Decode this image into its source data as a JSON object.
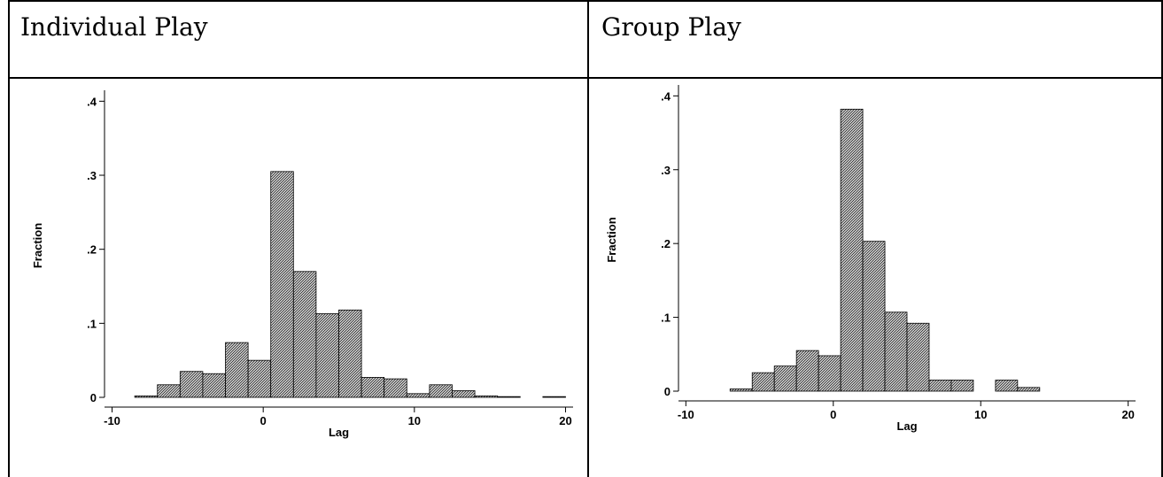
{
  "panels": [
    {
      "title": "Individual Play"
    },
    {
      "title": "Group Play"
    }
  ],
  "chart_data": [
    {
      "type": "bar",
      "title": "Individual Play",
      "xlabel": "Lag",
      "ylabel": "Fraction",
      "xlim": [
        -10.5,
        20.5
      ],
      "ylim": [
        0,
        0.41
      ],
      "xticks": [
        -10,
        0,
        10,
        20
      ],
      "xtick_labels": [
        "-10",
        "0",
        "10",
        "20"
      ],
      "yticks": [
        0,
        0.1,
        0.2,
        0.3,
        0.4
      ],
      "ytick_labels": [
        "0",
        ".1",
        ".2",
        ".3",
        ".4"
      ],
      "bin_width": 1.5,
      "bins": [
        {
          "x0": -8.5,
          "value": 0.002
        },
        {
          "x0": -7.0,
          "value": 0.017
        },
        {
          "x0": -5.5,
          "value": 0.035
        },
        {
          "x0": -4.0,
          "value": 0.032
        },
        {
          "x0": -2.5,
          "value": 0.074
        },
        {
          "x0": -1.0,
          "value": 0.05
        },
        {
          "x0": 0.5,
          "value": 0.305
        },
        {
          "x0": 2.0,
          "value": 0.17
        },
        {
          "x0": 3.5,
          "value": 0.113
        },
        {
          "x0": 5.0,
          "value": 0.118
        },
        {
          "x0": 6.5,
          "value": 0.027
        },
        {
          "x0": 8.0,
          "value": 0.025
        },
        {
          "x0": 9.5,
          "value": 0.005
        },
        {
          "x0": 11.0,
          "value": 0.017
        },
        {
          "x0": 12.5,
          "value": 0.009
        },
        {
          "x0": 14.0,
          "value": 0.002
        },
        {
          "x0": 15.5,
          "value": 0.001
        },
        {
          "x0": 17.0,
          "value": 0.0
        },
        {
          "x0": 18.5,
          "value": 0.001
        }
      ]
    },
    {
      "type": "bar",
      "title": "Group Play",
      "xlabel": "Lag",
      "ylabel": "Fraction",
      "xlim": [
        -10.5,
        20.5
      ],
      "ylim": [
        0,
        0.41
      ],
      "xticks": [
        -10,
        0,
        10,
        20
      ],
      "xtick_labels": [
        "-10",
        "0",
        "10",
        "20"
      ],
      "yticks": [
        0,
        0.1,
        0.2,
        0.3,
        0.4
      ],
      "ytick_labels": [
        "0",
        ".1",
        ".2",
        ".3",
        ".4"
      ],
      "bin_width": 1.5,
      "bins": [
        {
          "x0": -7.0,
          "value": 0.003
        },
        {
          "x0": -5.5,
          "value": 0.025
        },
        {
          "x0": -4.0,
          "value": 0.034
        },
        {
          "x0": -2.5,
          "value": 0.055
        },
        {
          "x0": -1.0,
          "value": 0.048
        },
        {
          "x0": 0.5,
          "value": 0.382
        },
        {
          "x0": 2.0,
          "value": 0.203
        },
        {
          "x0": 3.5,
          "value": 0.107
        },
        {
          "x0": 5.0,
          "value": 0.092
        },
        {
          "x0": 6.5,
          "value": 0.015
        },
        {
          "x0": 8.0,
          "value": 0.015
        },
        {
          "x0": 11.0,
          "value": 0.015
        },
        {
          "x0": 12.5,
          "value": 0.005
        }
      ]
    }
  ]
}
